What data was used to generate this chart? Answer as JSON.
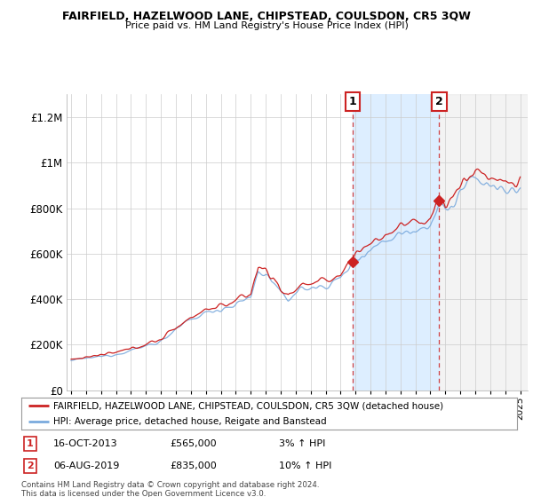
{
  "title": "FAIRFIELD, HAZELWOOD LANE, CHIPSTEAD, COULSDON, CR5 3QW",
  "subtitle": "Price paid vs. HM Land Registry's House Price Index (HPI)",
  "ylim": [
    0,
    1300000
  ],
  "yticks": [
    0,
    200000,
    400000,
    600000,
    800000,
    1000000,
    1200000
  ],
  "ytick_labels": [
    "£0",
    "£200K",
    "£400K",
    "£600K",
    "£800K",
    "£1M",
    "£1.2M"
  ],
  "x_start_year": 1995,
  "x_end_year": 2025,
  "hpi_color": "#7aaadd",
  "price_color": "#cc2222",
  "sale1_year": 2013.79,
  "sale1_price": 565000,
  "sale2_year": 2019.59,
  "sale2_price": 835000,
  "legend_line1": "FAIRFIELD, HAZELWOOD LANE, CHIPSTEAD, COULSDON, CR5 3QW (detached house)",
  "legend_line2": "HPI: Average price, detached house, Reigate and Banstead",
  "note1_date": "16-OCT-2013",
  "note1_price": "£565,000",
  "note1_hpi": "3% ↑ HPI",
  "note2_date": "06-AUG-2019",
  "note2_price": "£835,000",
  "note2_hpi": "10% ↑ HPI",
  "footer": "Contains HM Land Registry data © Crown copyright and database right 2024.\nThis data is licensed under the Open Government Licence v3.0.",
  "bg_color": "#ffffff",
  "plot_bg_color": "#ffffff",
  "highlight_color": "#ddeeff",
  "hatch_color": "#dddddd",
  "grid_color": "#cccccc",
  "anchors_hpi": {
    "1995.0": 130000,
    "1996.0": 140000,
    "1997.0": 148000,
    "1998.0": 158000,
    "1999.0": 175000,
    "2000.0": 195000,
    "2001.0": 215000,
    "2002.0": 265000,
    "2003.0": 310000,
    "2004.0": 340000,
    "2005.0": 358000,
    "2006.0": 375000,
    "2007.0": 410000,
    "2007.5": 520000,
    "2008.0": 510000,
    "2008.5": 475000,
    "2009.0": 420000,
    "2009.5": 400000,
    "2010.0": 430000,
    "2010.5": 450000,
    "2011.0": 445000,
    "2012.0": 460000,
    "2013.0": 490000,
    "2013.79": 560000,
    "2014.0": 575000,
    "2014.5": 600000,
    "2015.0": 620000,
    "2016.0": 660000,
    "2017.0": 690000,
    "2018.0": 710000,
    "2019.0": 730000,
    "2019.59": 810000,
    "2020.0": 790000,
    "2020.5": 810000,
    "2021.0": 870000,
    "2021.5": 900000,
    "2022.0": 930000,
    "2022.5": 920000,
    "2023.0": 900000,
    "2023.5": 880000,
    "2024.0": 880000,
    "2024.5": 870000,
    "2025.0": 875000
  }
}
